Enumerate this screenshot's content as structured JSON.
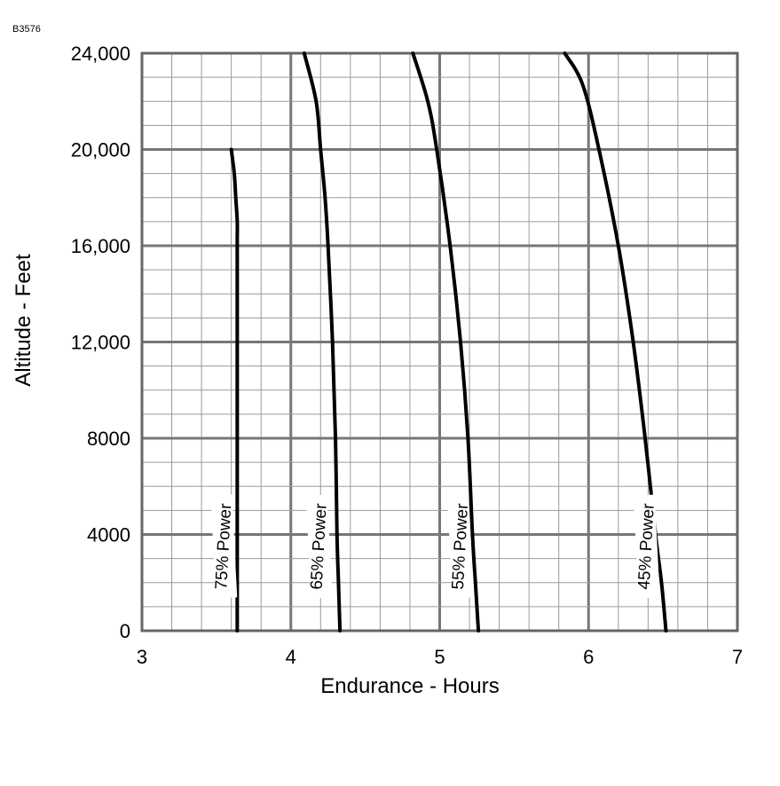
{
  "figure_id": "B3576",
  "chart_data": {
    "type": "line",
    "xlabel": "Endurance - Hours",
    "ylabel": "Altitude - Feet",
    "xlim": [
      3,
      7
    ],
    "ylim": [
      0,
      24000
    ],
    "x_ticks": [
      {
        "value": 3,
        "label": "3"
      },
      {
        "value": 4,
        "label": "4"
      },
      {
        "value": 5,
        "label": "5"
      },
      {
        "value": 6,
        "label": "6"
      },
      {
        "value": 7,
        "label": "7"
      }
    ],
    "y_ticks": [
      {
        "value": 0,
        "label": "0"
      },
      {
        "value": 4000,
        "label": "4000"
      },
      {
        "value": 8000,
        "label": "8000"
      },
      {
        "value": 12000,
        "label": "12,000"
      },
      {
        "value": 16000,
        "label": "16,000"
      },
      {
        "value": 20000,
        "label": "20,000"
      },
      {
        "value": 24000,
        "label": "24,000"
      }
    ],
    "grid": true,
    "minor_grid": {
      "x_per_major": 5,
      "y_per_major": 4
    },
    "series": [
      {
        "name": "75% Power",
        "color": "#000000",
        "points": [
          [
            3.64,
            0
          ],
          [
            3.64,
            4000
          ],
          [
            3.64,
            8000
          ],
          [
            3.64,
            12000
          ],
          [
            3.64,
            16000
          ],
          [
            3.64,
            17000
          ],
          [
            3.63,
            18000
          ],
          [
            3.62,
            19000
          ],
          [
            3.6,
            20000
          ]
        ],
        "label_at": [
          3.55,
          3500
        ]
      },
      {
        "name": "65% Power",
        "color": "#000000",
        "points": [
          [
            4.33,
            0
          ],
          [
            4.32,
            2000
          ],
          [
            4.31,
            4000
          ],
          [
            4.3,
            8000
          ],
          [
            4.28,
            12000
          ],
          [
            4.25,
            16000
          ],
          [
            4.23,
            18000
          ],
          [
            4.2,
            20000
          ],
          [
            4.17,
            22000
          ],
          [
            4.09,
            24000
          ]
        ],
        "label_at": [
          4.19,
          3500
        ]
      },
      {
        "name": "55% Power",
        "color": "#000000",
        "points": [
          [
            5.26,
            0
          ],
          [
            5.24,
            2000
          ],
          [
            5.22,
            4000
          ],
          [
            5.19,
            8000
          ],
          [
            5.14,
            12000
          ],
          [
            5.07,
            16000
          ],
          [
            4.98,
            20000
          ],
          [
            4.92,
            22000
          ],
          [
            4.82,
            24000
          ]
        ],
        "label_at": [
          5.14,
          3500
        ]
      },
      {
        "name": "45% Power",
        "color": "#000000",
        "points": [
          [
            6.52,
            0
          ],
          [
            6.49,
            2000
          ],
          [
            6.45,
            4000
          ],
          [
            6.38,
            8000
          ],
          [
            6.3,
            12000
          ],
          [
            6.2,
            16000
          ],
          [
            6.07,
            20000
          ],
          [
            5.96,
            22700
          ],
          [
            5.84,
            24000
          ]
        ],
        "label_at": [
          6.39,
          3500
        ]
      }
    ]
  }
}
